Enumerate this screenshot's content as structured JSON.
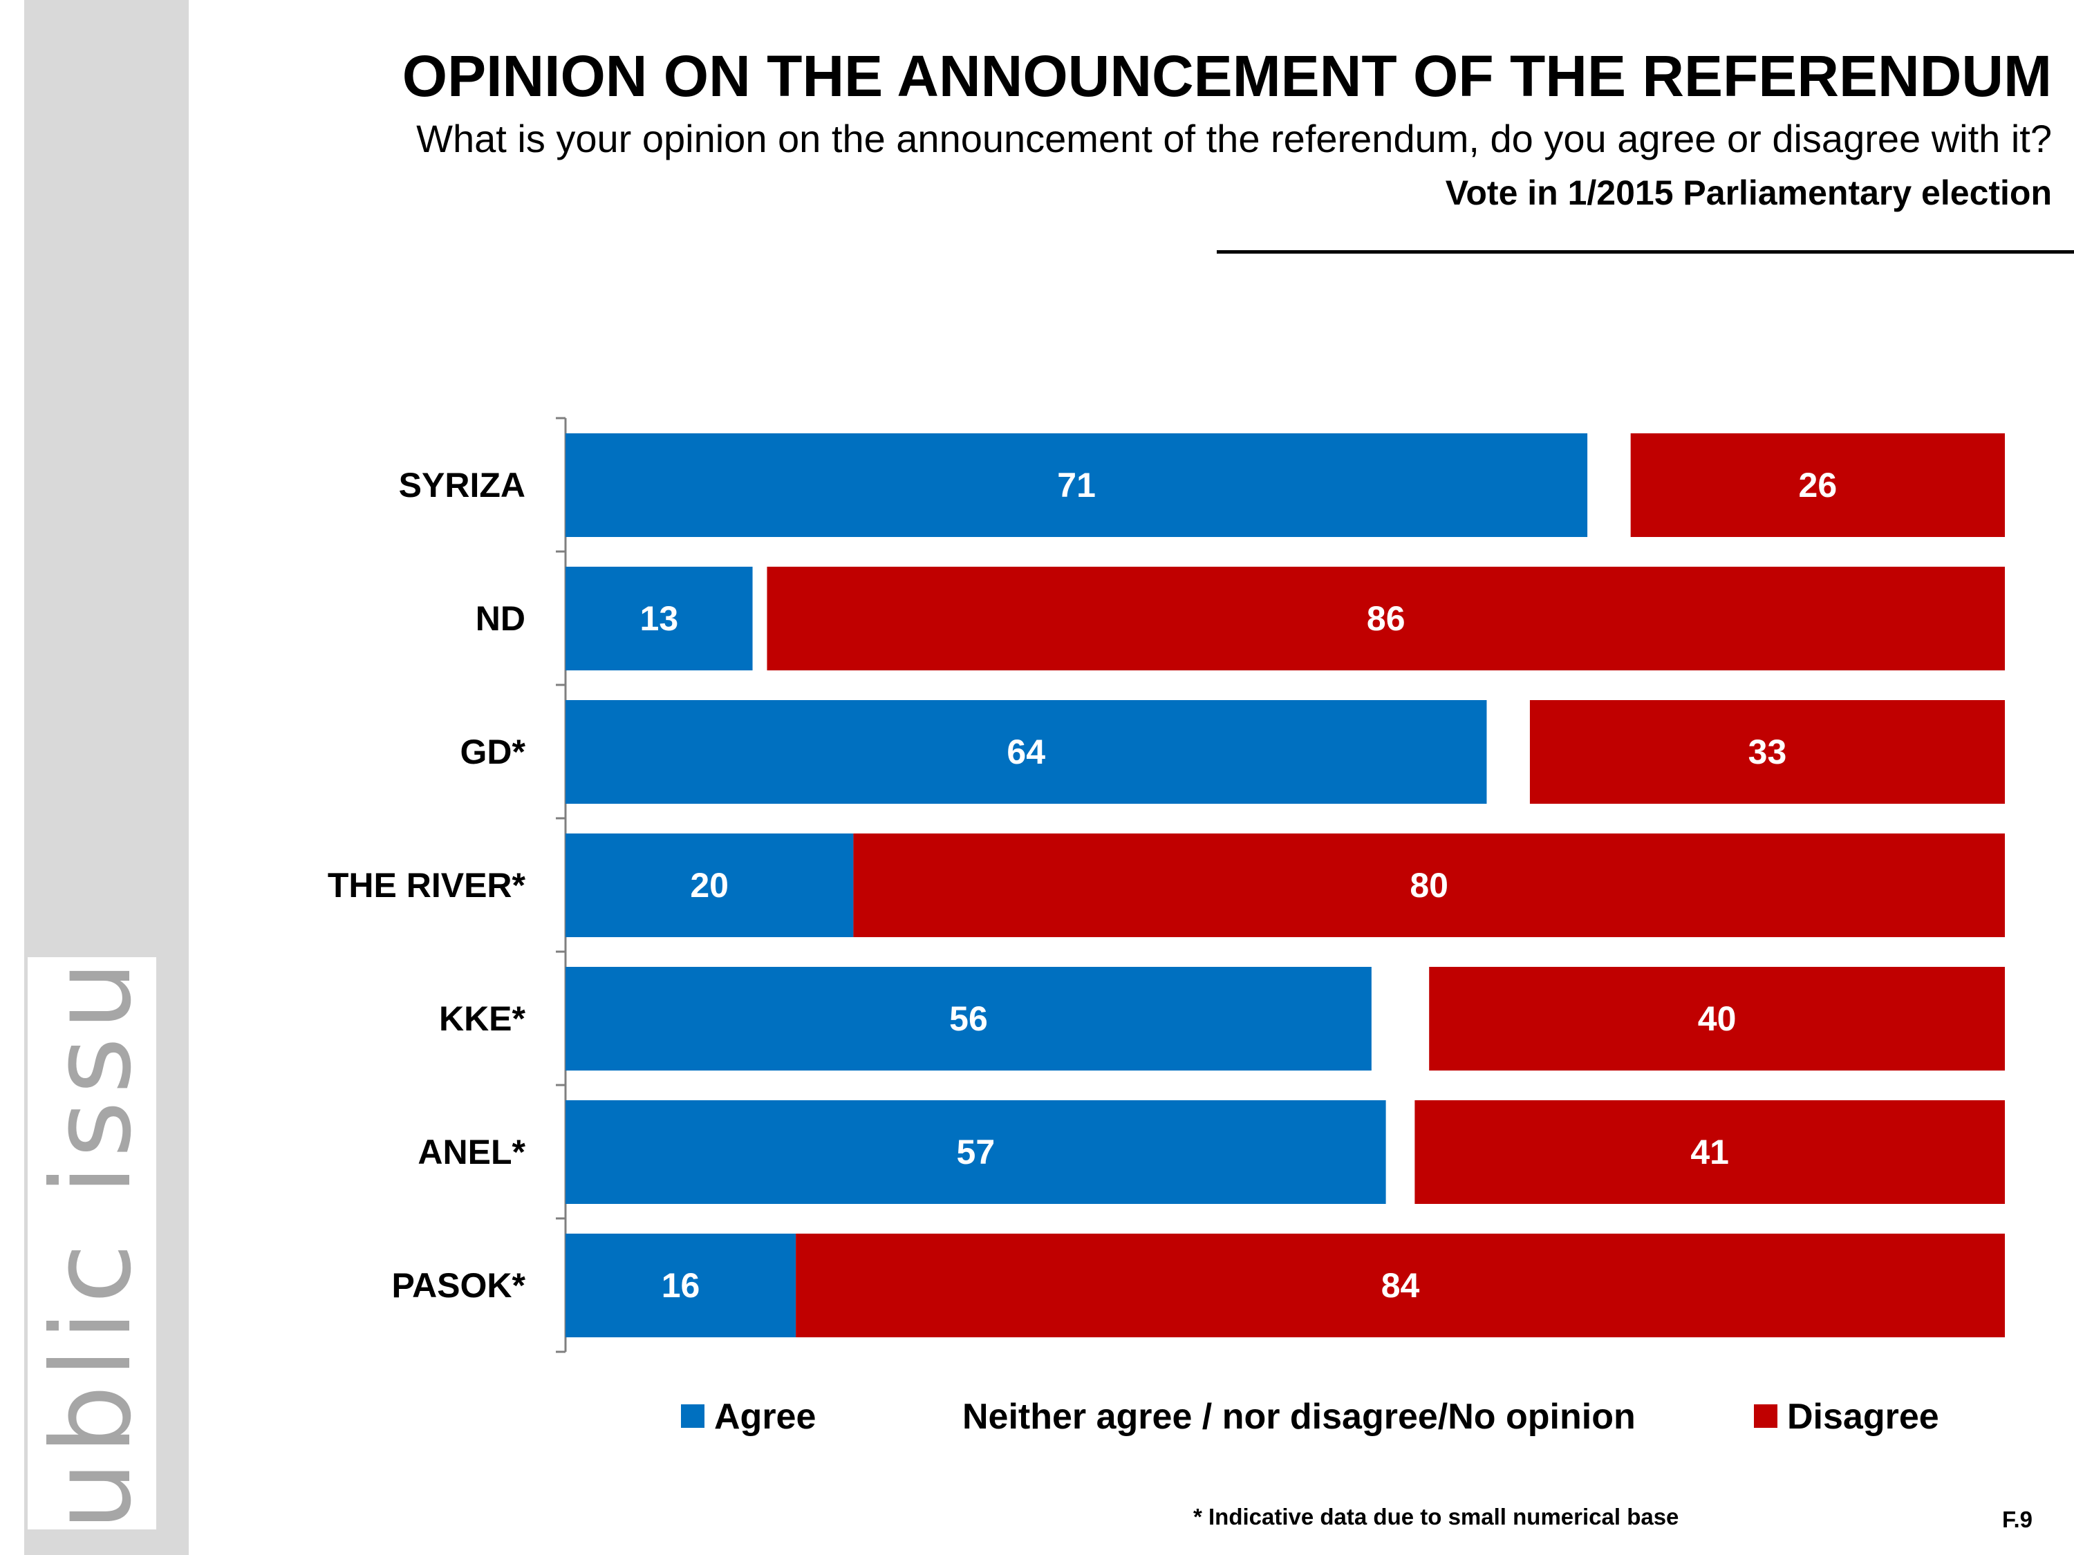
{
  "brand": {
    "logo_text": "public issue"
  },
  "header": {
    "title": "OPINION ON THE ANNOUNCEMENT OF THE REFERENDUM",
    "subtitle": "What is your opinion on the announcement of the referendum, do you agree or disagree with it?",
    "subtitle2": "Vote in 1/2015 Parliamentary election"
  },
  "legend": {
    "agree": "Agree",
    "neither": "Neither agree / nor disagree/No opinion",
    "disagree": "Disagree"
  },
  "colors": {
    "agree": "#0070c0",
    "neither": "#ffffff",
    "disagree": "#c00000",
    "logo": "#a6a6a6",
    "sidebar": "#d9d9d9"
  },
  "footer": {
    "footnote": "* Indicative data due to small numerical base",
    "page": "F.9"
  },
  "chart_data": {
    "type": "bar",
    "orientation": "horizontal",
    "stacked": true,
    "categories": [
      "SYRIZA",
      "ND",
      "GD*",
      "THE RIVER*",
      "KKE*",
      "ANEL*",
      "PASOK*"
    ],
    "series": [
      {
        "name": "Agree",
        "values": [
          71,
          13,
          64,
          20,
          56,
          57,
          16
        ]
      },
      {
        "name": "Neither agree / nor disagree/No opinion",
        "values": [
          3,
          1,
          3,
          0,
          4,
          2,
          0
        ]
      },
      {
        "name": "Disagree",
        "values": [
          26,
          86,
          33,
          80,
          40,
          41,
          84
        ]
      }
    ],
    "xlim": [
      0,
      100
    ],
    "data_labels": "Agree and Disagree values shown inside bars",
    "legend": "bottom",
    "grid": false
  }
}
